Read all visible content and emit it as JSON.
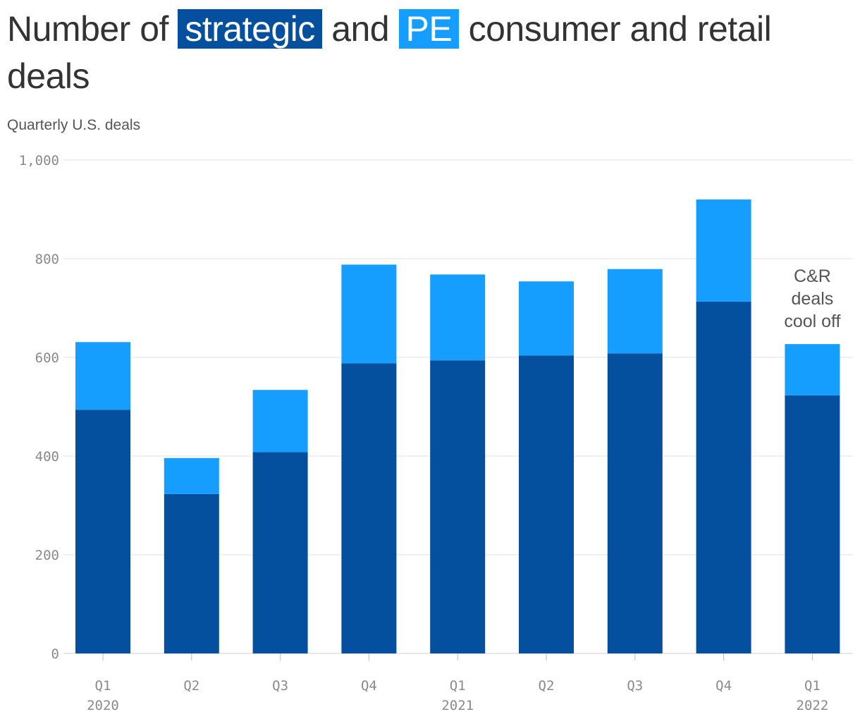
{
  "title": {
    "part1": "Number of ",
    "strategic_label": "strategic",
    "part2": " and ",
    "pe_label": "PE",
    "part3": " consumer and retail deals"
  },
  "subtitle": "Quarterly U.S. deals",
  "colors": {
    "strategic": "#04509e",
    "pe": "#159efe",
    "grid": "#e0e0e0",
    "axis_text": "#8a8a8a"
  },
  "chart_data": {
    "type": "bar",
    "stacked": true,
    "categories": [
      "Q1 2020",
      "Q2 2020",
      "Q3 2020",
      "Q4 2020",
      "Q1 2021",
      "Q2 2021",
      "Q3 2021",
      "Q4 2021",
      "Q1 2022"
    ],
    "x_tick_labels": [
      {
        "quarter": "Q1",
        "year": "2020"
      },
      {
        "quarter": "Q2",
        "year": ""
      },
      {
        "quarter": "Q3",
        "year": ""
      },
      {
        "quarter": "Q4",
        "year": ""
      },
      {
        "quarter": "Q1",
        "year": "2021"
      },
      {
        "quarter": "Q2",
        "year": ""
      },
      {
        "quarter": "Q3",
        "year": ""
      },
      {
        "quarter": "Q4",
        "year": ""
      },
      {
        "quarter": "Q1",
        "year": "2022"
      }
    ],
    "series": [
      {
        "name": "strategic",
        "values": [
          494,
          323,
          408,
          588,
          594,
          604,
          608,
          713,
          523
        ]
      },
      {
        "name": "PE",
        "values": [
          137,
          73,
          126,
          200,
          174,
          150,
          171,
          207,
          104
        ]
      }
    ],
    "totals": [
      631,
      396,
      534,
      788,
      768,
      754,
      779,
      920,
      627
    ],
    "ylim": [
      0,
      1000
    ],
    "y_ticks": [
      {
        "value": 0,
        "label": "0"
      },
      {
        "value": 200,
        "label": "200"
      },
      {
        "value": 400,
        "label": "400"
      },
      {
        "value": 600,
        "label": "600"
      },
      {
        "value": 800,
        "label": "800"
      },
      {
        "value": 1000,
        "label": "1,000"
      }
    ],
    "grid": true,
    "annotation": {
      "category": "Q1 2022",
      "lines": [
        "C&R",
        "deals",
        "cool off"
      ]
    }
  }
}
